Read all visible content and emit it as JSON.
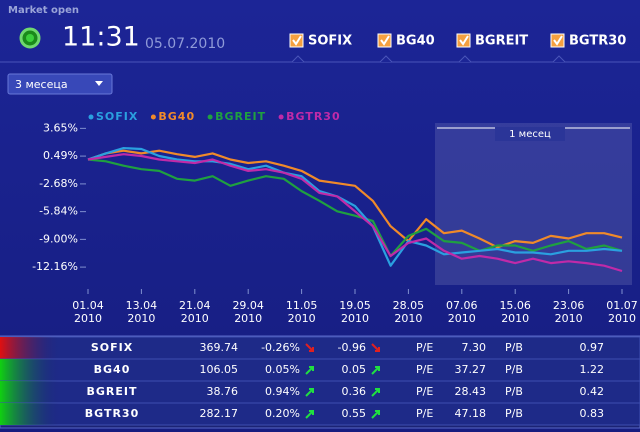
{
  "header": {
    "status": "Market open",
    "time": "11:31",
    "date": "05.07.2010",
    "tabs": [
      "SOFIX",
      "BG40",
      "BGREIT",
      "BGTR30"
    ]
  },
  "period_select": "3 месеца",
  "chart_data": {
    "type": "line",
    "annotation": "1 месец",
    "categories": [
      "01.04 2010",
      null,
      null,
      "13.04 2010",
      null,
      null,
      "21.04 2010",
      null,
      null,
      "29.04 2010",
      null,
      null,
      "11.05 2010",
      null,
      null,
      "19.05 2010",
      null,
      null,
      "28.05 2010",
      null,
      null,
      "07.06 2010",
      null,
      null,
      "15.06 2010",
      null,
      null,
      "23.06 2010",
      null,
      null,
      "01.07 2010"
    ],
    "ylim": [
      -14.2,
      5.4
    ],
    "yticks": [
      {
        "value": 3.65,
        "label": "3.65%"
      },
      {
        "value": 0.49,
        "label": "0.49%"
      },
      {
        "value": -2.68,
        "label": "-2.68%"
      },
      {
        "value": -5.84,
        "label": "-5.84%"
      },
      {
        "value": -9.0,
        "label": "-9.00%"
      },
      {
        "value": -12.16,
        "label": "-12.16%"
      }
    ],
    "series": [
      {
        "name": "SOFIX",
        "color": "#2aa0e0",
        "values": [
          0.1,
          0.8,
          1.4,
          1.3,
          0.5,
          0.1,
          -0.1,
          -0.1,
          -0.4,
          -1.0,
          -0.6,
          -1.4,
          -1.8,
          -3.5,
          -4.1,
          -5.2,
          -7.5,
          -12.0,
          -9.2,
          -9.7,
          -10.7,
          -10.5,
          -10.3,
          -10.1,
          -10.5,
          -10.5,
          -10.7,
          -10.3,
          -10.3,
          -10.1,
          -10.3
        ]
      },
      {
        "name": "BG40",
        "color": "#f08a2a",
        "values": [
          0.1,
          0.8,
          1.1,
          0.8,
          1.1,
          0.7,
          0.4,
          0.8,
          0.1,
          -0.3,
          -0.1,
          -0.6,
          -1.2,
          -2.3,
          -2.6,
          -2.9,
          -4.6,
          -7.5,
          -9.2,
          -6.7,
          -8.3,
          -8.0,
          -8.9,
          -9.9,
          -9.2,
          -9.4,
          -8.6,
          -8.9,
          -8.3,
          -8.3,
          -8.8
        ]
      },
      {
        "name": "BGREIT",
        "color": "#1fa040",
        "values": [
          0.1,
          -0.1,
          -0.6,
          -1.0,
          -1.2,
          -2.1,
          -2.3,
          -1.8,
          -2.9,
          -2.3,
          -1.8,
          -2.1,
          -3.5,
          -4.6,
          -5.8,
          -6.3,
          -6.9,
          -10.9,
          -8.6,
          -7.8,
          -9.2,
          -9.4,
          -10.3,
          -9.7,
          -9.7,
          -10.3,
          -9.7,
          -9.2,
          -10.1,
          -9.7,
          -10.3
        ]
      },
      {
        "name": "BGTR30",
        "color": "#c02aa8",
        "values": [
          0.1,
          0.4,
          0.7,
          0.5,
          0.1,
          -0.1,
          -0.3,
          0.1,
          -0.6,
          -1.2,
          -1.0,
          -1.4,
          -2.1,
          -3.7,
          -4.1,
          -5.8,
          -7.5,
          -10.9,
          -9.4,
          -8.9,
          -10.3,
          -11.2,
          -10.9,
          -11.2,
          -11.7,
          -11.2,
          -11.7,
          -11.5,
          -11.7,
          -12.0,
          -12.6
        ]
      }
    ]
  },
  "table": {
    "rows": [
      [
        "SOFIX",
        "369.74",
        "-0.26%",
        "-0.96",
        "P/E",
        "7.30",
        "P/B",
        "0.97"
      ],
      [
        "BG40",
        "106.05",
        "0.05%",
        "0.05",
        "P/E",
        "37.27",
        "P/B",
        "1.22"
      ],
      [
        "BGREIT",
        "38.76",
        "0.94%",
        "0.36",
        "P/E",
        "28.43",
        "P/B",
        "0.42"
      ],
      [
        "BGTR30",
        "282.17",
        "0.20%",
        "0.55",
        "P/E",
        "47.18",
        "P/B",
        "0.83"
      ]
    ]
  }
}
